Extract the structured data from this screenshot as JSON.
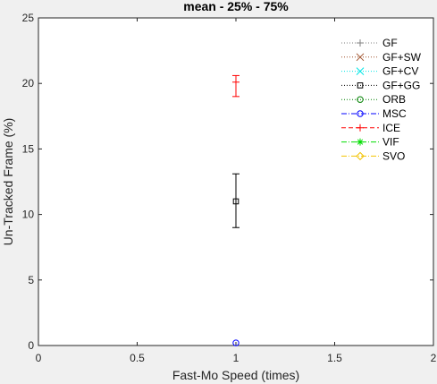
{
  "chart_data": {
    "type": "scatter",
    "title": "mean - 25% - 75%",
    "xlabel": "Fast-Mo Speed (times)",
    "ylabel": "Un-Tracked Frame (%)",
    "xlim": [
      0,
      2
    ],
    "ylim": [
      0,
      25
    ],
    "xticks": [
      0,
      0.5,
      1,
      1.5,
      2
    ],
    "xtick_labels": [
      "0",
      "0.5",
      "1",
      "1.5",
      "2"
    ],
    "yticks": [
      0,
      5,
      10,
      15,
      20,
      25
    ],
    "ytick_labels": [
      "0",
      "5",
      "10",
      "15",
      "20",
      "25"
    ],
    "grid": false,
    "legend_position": "top-right",
    "series": [
      {
        "name": "GF",
        "color": "#808080",
        "marker": "plus",
        "line": "dotted",
        "points": []
      },
      {
        "name": "GF+SW",
        "color": "#a0522d",
        "marker": "x",
        "line": "dotted",
        "points": []
      },
      {
        "name": "GF+CV",
        "color": "#00e5e5",
        "marker": "x",
        "line": "dotted",
        "points": []
      },
      {
        "name": "GF+GG",
        "color": "#000000",
        "marker": "square",
        "line": "dotted",
        "points": [
          {
            "x": 1,
            "y": 11.0,
            "low": 9.0,
            "high": 13.1
          }
        ]
      },
      {
        "name": "ORB",
        "color": "#008000",
        "marker": "circle",
        "line": "dotted",
        "points": []
      },
      {
        "name": "MSC",
        "color": "#0000ff",
        "marker": "circle",
        "line": "dashdot",
        "points": [
          {
            "x": 1,
            "y": 0.2,
            "low": 0.2,
            "high": 0.2
          }
        ]
      },
      {
        "name": "ICE",
        "color": "#ff0000",
        "marker": "plus",
        "line": "dashed",
        "points": [
          {
            "x": 1,
            "y": 20.1,
            "low": 19.0,
            "high": 20.6
          }
        ]
      },
      {
        "name": "VIF",
        "color": "#00dd00",
        "marker": "asterisk",
        "line": "dashdot",
        "points": []
      },
      {
        "name": "SVO",
        "color": "#f2c200",
        "marker": "diamond",
        "line": "dashdot",
        "points": []
      }
    ]
  }
}
